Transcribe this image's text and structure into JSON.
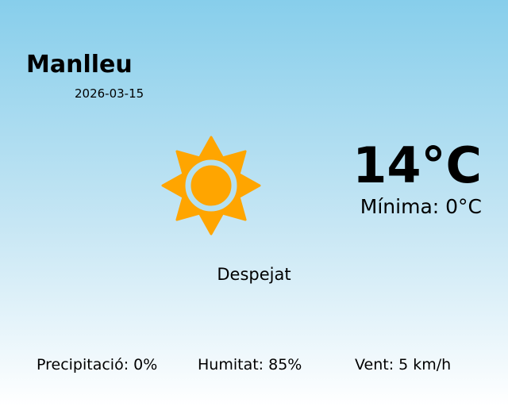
{
  "city": "Manlleu",
  "date": "2026-03-15",
  "temperature": "14°C",
  "minimum": "Mínima: 0°C",
  "condition": "Despejat",
  "condition_icon": "sun-icon",
  "stats": {
    "precipitation": "Precipitació: 0%",
    "humidity": "Humitat: 85%",
    "wind": "Vent: 5 km/h"
  },
  "colors": {
    "sun": "#ffa500",
    "sky_top": "#87ceeb",
    "sky_bottom": "#ffffff"
  }
}
